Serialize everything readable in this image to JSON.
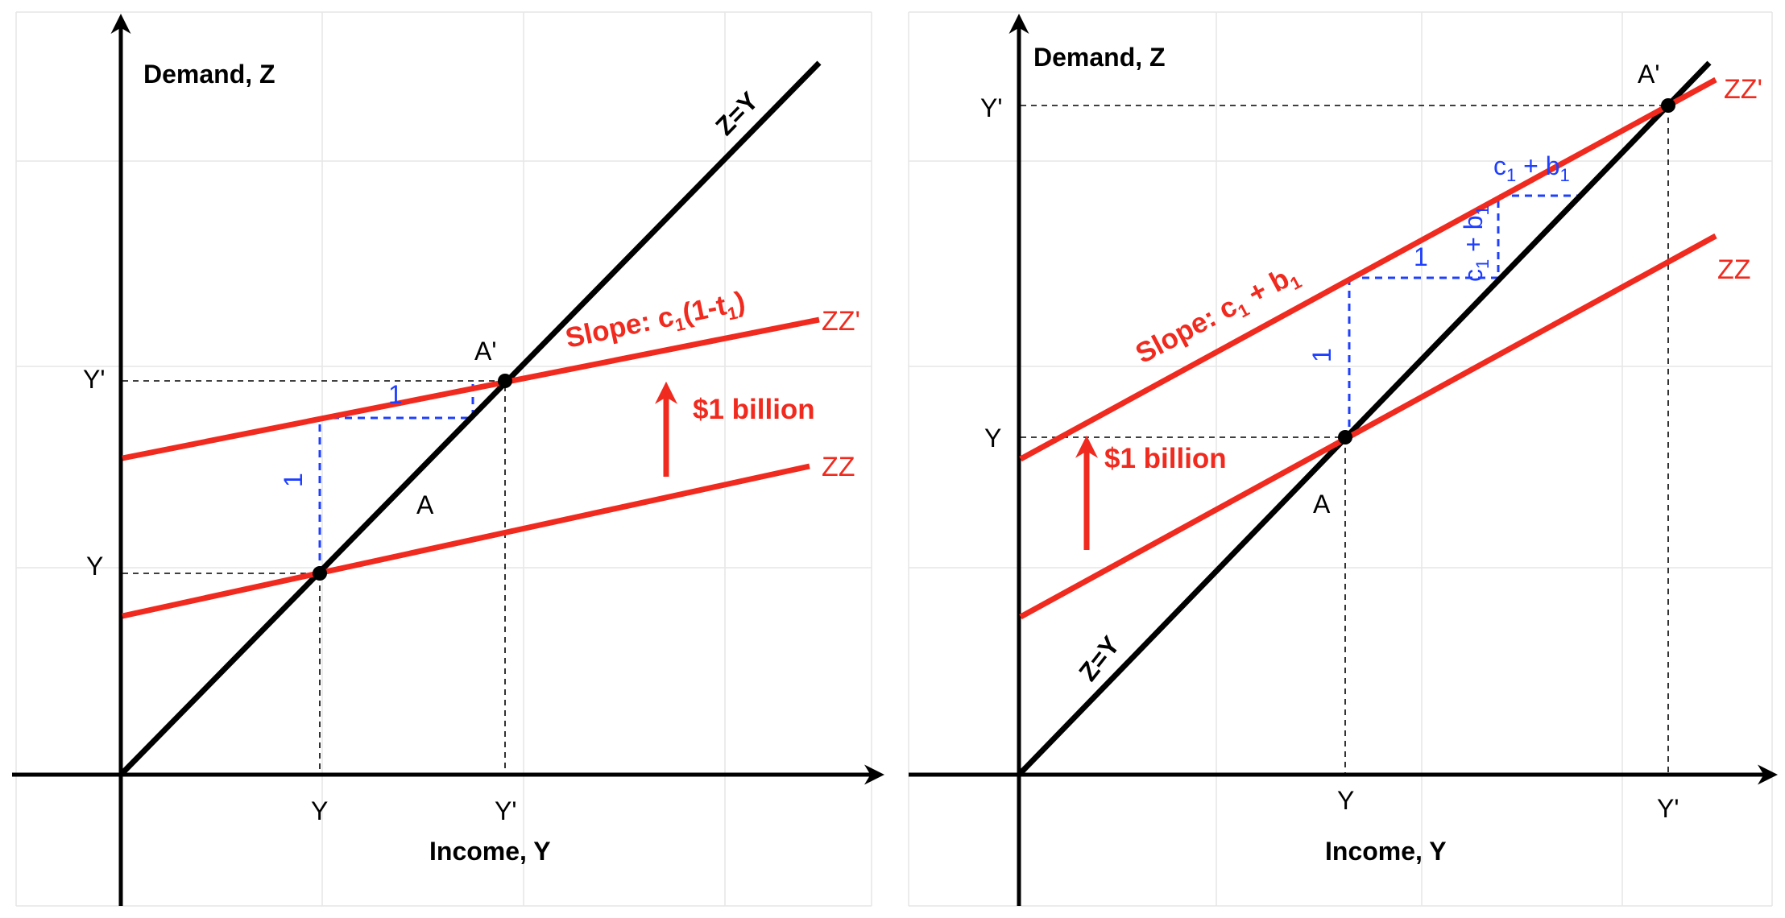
{
  "left_panel": {
    "y_axis_label": "Demand, Z",
    "x_axis_label": "Income, Y",
    "x_ticks": [
      "Y",
      "Y'"
    ],
    "y_ticks": [
      "Y",
      "Y'"
    ],
    "line_45": "Z=Y",
    "curve_old": "ZZ",
    "curve_new": "ZZ'",
    "point_old": "A",
    "point_new": "A'",
    "shift_label": "$1 billion",
    "slope_prefix": "Slope: c",
    "slope_sub1": "1",
    "slope_mid": "(1-t",
    "slope_sub2": "1",
    "slope_end": ")",
    "step_horizontal": "1",
    "step_vertical": "1"
  },
  "right_panel": {
    "y_axis_label": "Demand, Z",
    "x_axis_label": "Income, Y",
    "x_ticks": [
      "Y",
      "Y'"
    ],
    "y_ticks": [
      "Y",
      "Y'"
    ],
    "line_45": "Z=Y",
    "curve_old": "ZZ",
    "curve_new": "ZZ'",
    "point_old": "A",
    "point_new": "A'",
    "shift_label": "$1 billion",
    "slope_prefix": "Slope: c",
    "slope_sub1": "1",
    "slope_mid": " + b",
    "slope_sub2": "1",
    "step_vertical": "1",
    "step_horizontal": "1",
    "small_step_top_prefix": "c",
    "small_step_top_sub1": "1",
    "small_step_top_mid": " + b",
    "small_step_top_sub2": "1",
    "small_step_side_prefix": "c",
    "small_step_side_sub1": "1",
    "small_step_side_mid": " + b",
    "small_step_side_sub2": "1"
  },
  "colors": {
    "curves": "#f02a1e",
    "axes": "#000000",
    "steps": "#1f3fff",
    "grid": "#e6e6e6"
  }
}
